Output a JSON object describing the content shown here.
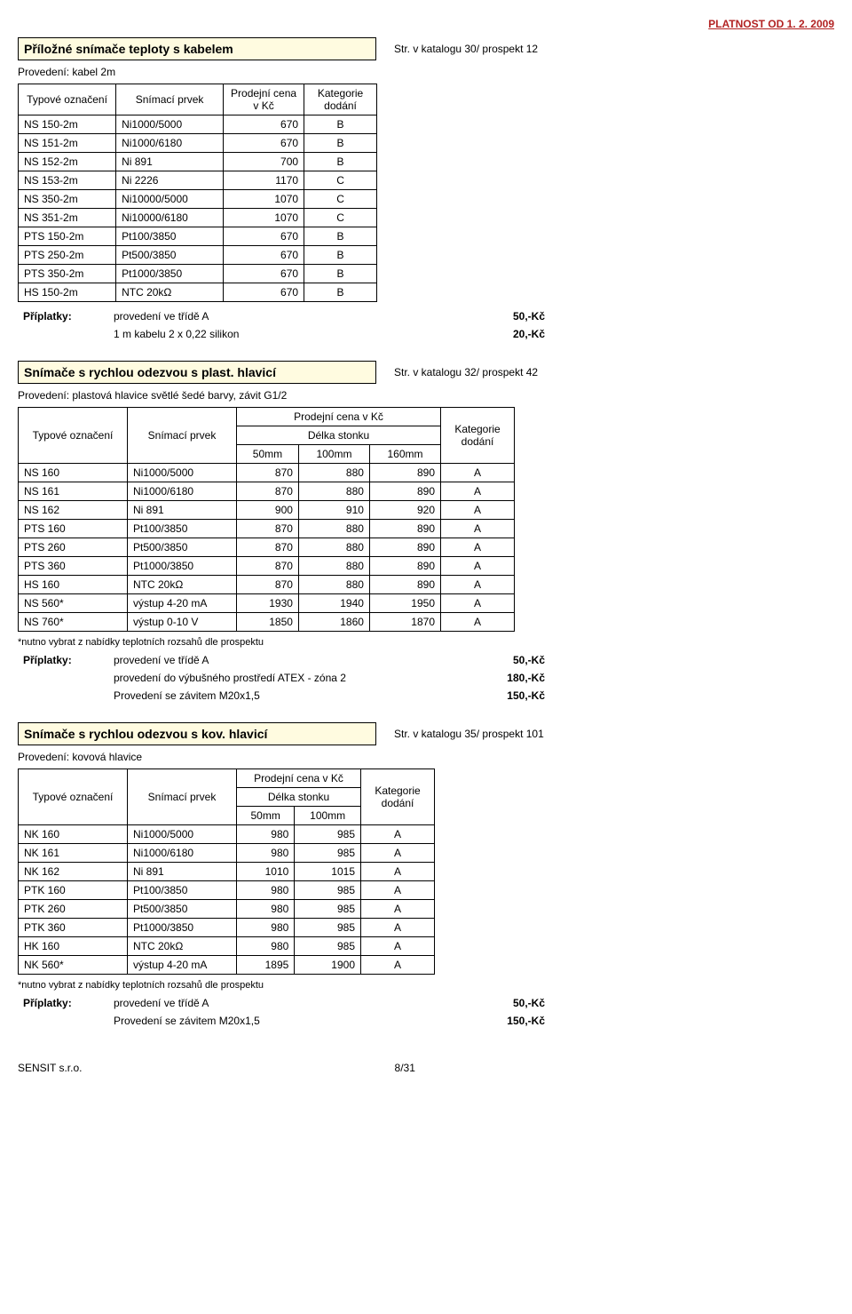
{
  "validity": "PLATNOST OD 1. 2. 2009",
  "footer_company": "SENSIT s.r.o.",
  "page_number": "8/31",
  "s1": {
    "title": "Příložné snímače teploty s kabelem",
    "catalog": "Str. v katalogu 30/ prospekt 12",
    "subtitle": "Provedení: kabel 2m",
    "headers": {
      "col1": "Typové označení",
      "col2": "Snímací prvek",
      "col3": "Prodejní cena v Kč",
      "col4": "Kategorie dodání"
    },
    "rows": [
      {
        "a": "NS 150-2m",
        "b": "Ni1000/5000",
        "c": "670",
        "d": "B"
      },
      {
        "a": "NS 151-2m",
        "b": "Ni1000/6180",
        "c": "670",
        "d": "B"
      },
      {
        "a": "NS 152-2m",
        "b": "Ni 891",
        "c": "700",
        "d": "B"
      },
      {
        "a": "NS 153-2m",
        "b": "Ni 2226",
        "c": "1170",
        "d": "C"
      },
      {
        "a": "NS 350-2m",
        "b": "Ni10000/5000",
        "c": "1070",
        "d": "C"
      },
      {
        "a": "NS 351-2m",
        "b": "Ni10000/6180",
        "c": "1070",
        "d": "C"
      },
      {
        "a": "PTS 150-2m",
        "b": "Pt100/3850",
        "c": "670",
        "d": "B"
      },
      {
        "a": "PTS 250-2m",
        "b": "Pt500/3850",
        "c": "670",
        "d": "B"
      },
      {
        "a": "PTS 350-2m",
        "b": "Pt1000/3850",
        "c": "670",
        "d": "B"
      },
      {
        "a": "HS 150-2m",
        "b": "NTC 20kΩ",
        "c": "670",
        "d": "B"
      }
    ],
    "surcharges_label": "Příplatky:",
    "surcharges": [
      {
        "t": "provedení ve třídě A",
        "p": "50,-Kč"
      },
      {
        "t": "1 m kabelu 2 x 0,22 silikon",
        "p": "20,-Kč"
      }
    ]
  },
  "s2": {
    "title": "Snímače s rychlou odezvou s plast. hlavicí",
    "catalog": "Str. v katalogu 32/ prospekt 42",
    "subtitle": "Provedení: plastová hlavice světlé šedé barvy, závit G1/2",
    "headers": {
      "col1": "Typové označení",
      "col2": "Snímací prvek",
      "price_hdr": "Prodejní cena v Kč",
      "len_hdr": "Délka stonku",
      "c50": "50mm",
      "c100": "100mm",
      "c160": "160mm",
      "kat": "Kategorie dodání"
    },
    "rows": [
      {
        "a": "NS 160",
        "b": "Ni1000/5000",
        "c": "870",
        "d": "880",
        "e": "890",
        "f": "A"
      },
      {
        "a": "NS 161",
        "b": "Ni1000/6180",
        "c": "870",
        "d": "880",
        "e": "890",
        "f": "A"
      },
      {
        "a": "NS 162",
        "b": "Ni 891",
        "c": "900",
        "d": "910",
        "e": "920",
        "f": "A"
      },
      {
        "a": "PTS 160",
        "b": "Pt100/3850",
        "c": "870",
        "d": "880",
        "e": "890",
        "f": "A"
      },
      {
        "a": "PTS 260",
        "b": "Pt500/3850",
        "c": "870",
        "d": "880",
        "e": "890",
        "f": "A"
      },
      {
        "a": "PTS 360",
        "b": "Pt1000/3850",
        "c": "870",
        "d": "880",
        "e": "890",
        "f": "A"
      },
      {
        "a": "HS 160",
        "b": "NTC 20kΩ",
        "c": "870",
        "d": "880",
        "e": "890",
        "f": "A"
      },
      {
        "a": "NS 560*",
        "b": "výstup 4-20 mA",
        "c": "1930",
        "d": "1940",
        "e": "1950",
        "f": "A"
      },
      {
        "a": "NS 760*",
        "b": "výstup 0-10 V",
        "c": "1850",
        "d": "1860",
        "e": "1870",
        "f": "A"
      }
    ],
    "note": "*nutno vybrat z nabídky teplotních rozsahů dle prospektu",
    "surcharges_label": "Příplatky:",
    "surcharges": [
      {
        "t": "provedení ve třídě A",
        "p": "50,-Kč"
      },
      {
        "t": "provedení do výbušného prostředí ATEX - zóna 2",
        "p": "180,-Kč"
      },
      {
        "t": "Provedení  se závitem M20x1,5",
        "p": "150,-Kč"
      }
    ]
  },
  "s3": {
    "title": "Snímače s rychlou odezvou s kov. hlavicí",
    "catalog": "Str. v katalogu 35/ prospekt 101",
    "subtitle": "Provedení: kovová hlavice",
    "headers": {
      "col1": "Typové označení",
      "col2": "Snímací prvek",
      "price_hdr": "Prodejní cena v Kč",
      "len_hdr": "Délka stonku",
      "c50": "50mm",
      "c100": "100mm",
      "kat": "Kategorie dodání"
    },
    "rows": [
      {
        "a": "NK 160",
        "b": "Ni1000/5000",
        "c": "980",
        "d": "985",
        "e": "A"
      },
      {
        "a": "NK 161",
        "b": "Ni1000/6180",
        "c": "980",
        "d": "985",
        "e": "A"
      },
      {
        "a": "NK 162",
        "b": "Ni 891",
        "c": "1010",
        "d": "1015",
        "e": "A"
      },
      {
        "a": "PTK 160",
        "b": "Pt100/3850",
        "c": "980",
        "d": "985",
        "e": "A"
      },
      {
        "a": "PTK 260",
        "b": "Pt500/3850",
        "c": "980",
        "d": "985",
        "e": "A"
      },
      {
        "a": "PTK 360",
        "b": "Pt1000/3850",
        "c": "980",
        "d": "985",
        "e": "A"
      },
      {
        "a": "HK 160",
        "b": "NTC 20kΩ",
        "c": "980",
        "d": "985",
        "e": "A"
      },
      {
        "a": "NK 560*",
        "b": "výstup 4-20 mA",
        "c": "1895",
        "d": "1900",
        "e": "A"
      }
    ],
    "note": "*nutno vybrat z nabídky teplotních rozsahů dle prospektu",
    "surcharges_label": "Příplatky:",
    "surcharges": [
      {
        "t": "provedení ve třídě A",
        "p": "50,-Kč"
      },
      {
        "t": "Provedení  se závitem M20x1,5",
        "p": "150,-Kč"
      }
    ]
  }
}
